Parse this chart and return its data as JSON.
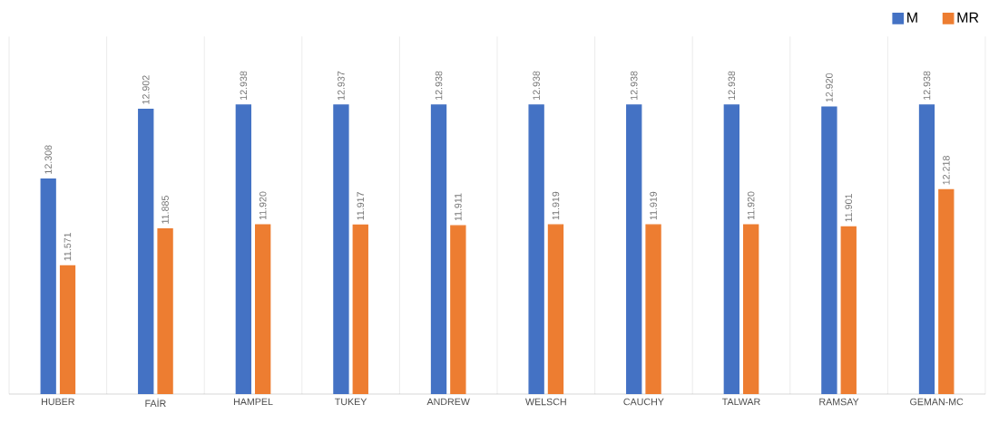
{
  "chart_data": {
    "type": "bar",
    "categories": [
      "HUBER",
      "FAİR",
      "HAMPEL",
      "TUKEY",
      "ANDREW",
      "WELSCH",
      "CAUCHY",
      "TALWAR",
      "RAMSAY",
      "GEMAN-MC"
    ],
    "series": [
      {
        "name": "M",
        "color": "#4472c4",
        "values": [
          12.308,
          12.902,
          12.938,
          12.937,
          12.938,
          12.938,
          12.938,
          12.938,
          12.92,
          12.938
        ],
        "value_labels": [
          "12.308",
          "12.902",
          "12.938",
          "12.937",
          "12.938",
          "12.938",
          "12.938",
          "12.938",
          "12.920",
          "12.938"
        ]
      },
      {
        "name": "MR",
        "color": "#ed7d31",
        "values": [
          11.571,
          11.885,
          11.92,
          11.917,
          11.911,
          11.919,
          11.919,
          11.92,
          11.901,
          12.218
        ],
        "value_labels": [
          "11.571",
          "11.885",
          "11.920",
          "11.917",
          "11.911",
          "11.919",
          "11.919",
          "11.920",
          "11.901",
          "12.218"
        ]
      }
    ],
    "ylim": [
      10.48,
      13.52
    ],
    "grid": "x",
    "legend": "top right",
    "tick_labels": "x"
  }
}
